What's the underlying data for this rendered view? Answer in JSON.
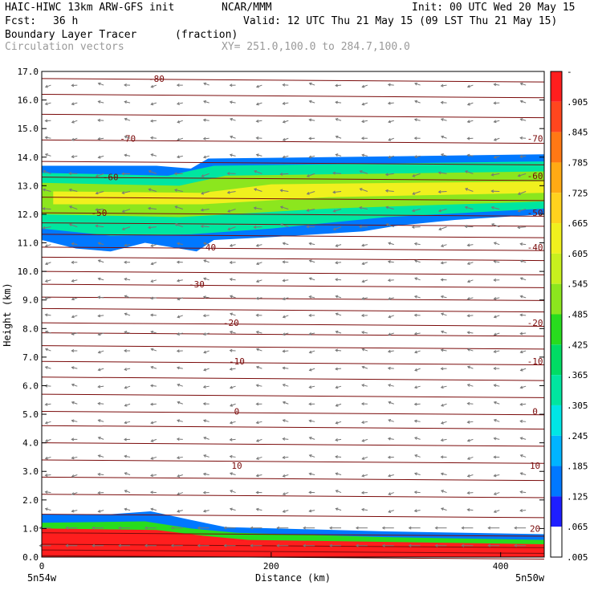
{
  "header": {
    "model": "HAIC-HIWC 13km ARW-GFS init",
    "org": "NCAR/MMM",
    "init": "Init: 00 UTC Wed 20 May 15",
    "fcst_label": "Fcst:",
    "fcst_value": "36 h",
    "valid": "Valid: 12 UTC Thu 21 May 15 (09 LST Thu 21 May 15)",
    "field": "Boundary Layer Tracer",
    "field_unit": "(fraction)",
    "vectors": "Circulation vectors",
    "xy": "XY= 251.0,100.0 to 284.7,100.0"
  },
  "colors": {
    "temperature_contour": "#7a0a0a",
    "vector": "#777777",
    "colorbar": [
      "#ffffff",
      "#1e1eff",
      "#0078ff",
      "#00b4ff",
      "#00e6e6",
      "#00e6a0",
      "#00dc64",
      "#28dc1e",
      "#8ce61e",
      "#c8f01e",
      "#f0f01e",
      "#ffd21e",
      "#ffaa14",
      "#ff7814",
      "#ff461e",
      "#ff1e1e"
    ]
  },
  "chart_data": {
    "type": "heatmap",
    "xlabel": "Distance (km)",
    "ylabel": "Height (km)",
    "xlim": [
      0,
      438
    ],
    "ylim": [
      0,
      17
    ],
    "x_ticks": [
      "0",
      "200",
      "400"
    ],
    "x_tick_values": [
      0,
      200,
      400
    ],
    "y_ticks": [
      "0.0",
      "1.0",
      "2.0",
      "3.0",
      "4.0",
      "5.0",
      "6.0",
      "7.0",
      "8.0",
      "9.0",
      "10.0",
      "11.0",
      "12.0",
      "13.0",
      "14.0",
      "15.0",
      "16.0",
      "17.0"
    ],
    "x_endpoints": [
      "5n54w",
      "5n50w"
    ],
    "colorbar_labels": [
      "-",
      ".905",
      ".845",
      ".785",
      ".725",
      ".665",
      ".605",
      ".545",
      ".485",
      ".425",
      ".365",
      ".305",
      ".245",
      ".185",
      ".125",
      ".065",
      ".005"
    ],
    "contour_labels": [
      {
        "text": "-80",
        "x": 100,
        "y": 16.75
      },
      {
        "text": "-70",
        "x": 75,
        "y": 14.65
      },
      {
        "text": "-70",
        "x": 430,
        "y": 14.65
      },
      {
        "text": "-60",
        "x": 60,
        "y": 13.3
      },
      {
        "text": "-60",
        "x": 430,
        "y": 13.35
      },
      {
        "text": "-50",
        "x": 50,
        "y": 12.05
      },
      {
        "text": "-50",
        "x": 430,
        "y": 12.05
      },
      {
        "text": "-40",
        "x": 145,
        "y": 10.85
      },
      {
        "text": "-40",
        "x": 430,
        "y": 10.85
      },
      {
        "text": "-30",
        "x": 135,
        "y": 9.55
      },
      {
        "text": "-20",
        "x": 165,
        "y": 8.2
      },
      {
        "text": "-20",
        "x": 430,
        "y": 8.2
      },
      {
        "text": "-10",
        "x": 170,
        "y": 6.85
      },
      {
        "text": "-10",
        "x": 430,
        "y": 6.85
      },
      {
        "text": "0",
        "x": 170,
        "y": 5.1
      },
      {
        "text": "0",
        "x": 430,
        "y": 5.1
      },
      {
        "text": "10",
        "x": 170,
        "y": 3.2
      },
      {
        "text": "10",
        "x": 430,
        "y": 3.2
      },
      {
        "text": "20",
        "x": 430,
        "y": 1.0
      }
    ],
    "tracer_layers": [
      {
        "name": "upper-outer",
        "level": 0.065,
        "top": [
          [
            0,
            13.7
          ],
          [
            100,
            13.7
          ],
          [
            130,
            13.6
          ],
          [
            145,
            13.95
          ],
          [
            250,
            14.0
          ],
          [
            438,
            14.1
          ]
        ],
        "bottom": [
          [
            0,
            11.1
          ],
          [
            30,
            10.8
          ],
          [
            60,
            10.7
          ],
          [
            90,
            11.0
          ],
          [
            120,
            10.8
          ],
          [
            135,
            10.7
          ],
          [
            150,
            11.1
          ],
          [
            200,
            11.2
          ],
          [
            280,
            11.4
          ],
          [
            310,
            11.6
          ],
          [
            360,
            11.8
          ],
          [
            438,
            12.0
          ]
        ]
      },
      {
        "name": "upper-mid",
        "level": 0.245,
        "top": [
          [
            0,
            13.45
          ],
          [
            110,
            13.35
          ],
          [
            150,
            13.7
          ],
          [
            438,
            13.85
          ]
        ],
        "bottom": [
          [
            0,
            11.5
          ],
          [
            60,
            11.25
          ],
          [
            130,
            11.3
          ],
          [
            200,
            11.5
          ],
          [
            300,
            11.9
          ],
          [
            438,
            12.2
          ]
        ]
      },
      {
        "name": "upper-core",
        "level": 0.425,
        "top": [
          [
            0,
            13.1
          ],
          [
            120,
            13.0
          ],
          [
            160,
            13.35
          ],
          [
            438,
            13.5
          ]
        ],
        "bottom": [
          [
            0,
            12.0
          ],
          [
            120,
            11.9
          ],
          [
            250,
            12.2
          ],
          [
            438,
            12.45
          ]
        ]
      },
      {
        "name": "upper-peak",
        "level": 0.545,
        "top": [
          [
            10,
            12.8
          ],
          [
            140,
            12.75
          ],
          [
            200,
            13.05
          ],
          [
            438,
            13.15
          ]
        ],
        "bottom": [
          [
            10,
            12.35
          ],
          [
            140,
            12.35
          ],
          [
            250,
            12.6
          ],
          [
            438,
            12.75
          ]
        ]
      },
      {
        "name": "boundary-outer",
        "level": 0.065,
        "top": [
          [
            0,
            1.5
          ],
          [
            60,
            1.5
          ],
          [
            95,
            1.6
          ],
          [
            130,
            1.3
          ],
          [
            160,
            1.05
          ],
          [
            300,
            0.9
          ],
          [
            438,
            0.8
          ]
        ],
        "bottom": [
          [
            0,
            0
          ],
          [
            438,
            0
          ]
        ]
      },
      {
        "name": "boundary-mid",
        "level": 0.365,
        "top": [
          [
            0,
            1.2
          ],
          [
            90,
            1.25
          ],
          [
            130,
            1.0
          ],
          [
            170,
            0.85
          ],
          [
            300,
            0.7
          ],
          [
            438,
            0.6
          ]
        ],
        "bottom": [
          [
            0,
            0
          ],
          [
            438,
            0
          ]
        ]
      },
      {
        "name": "boundary-core",
        "level": 0.905,
        "top": [
          [
            0,
            1.0
          ],
          [
            100,
            0.95
          ],
          [
            140,
            0.75
          ],
          [
            180,
            0.6
          ],
          [
            438,
            0.45
          ]
        ],
        "bottom": [
          [
            0,
            0
          ],
          [
            438,
            0
          ]
        ]
      }
    ]
  }
}
